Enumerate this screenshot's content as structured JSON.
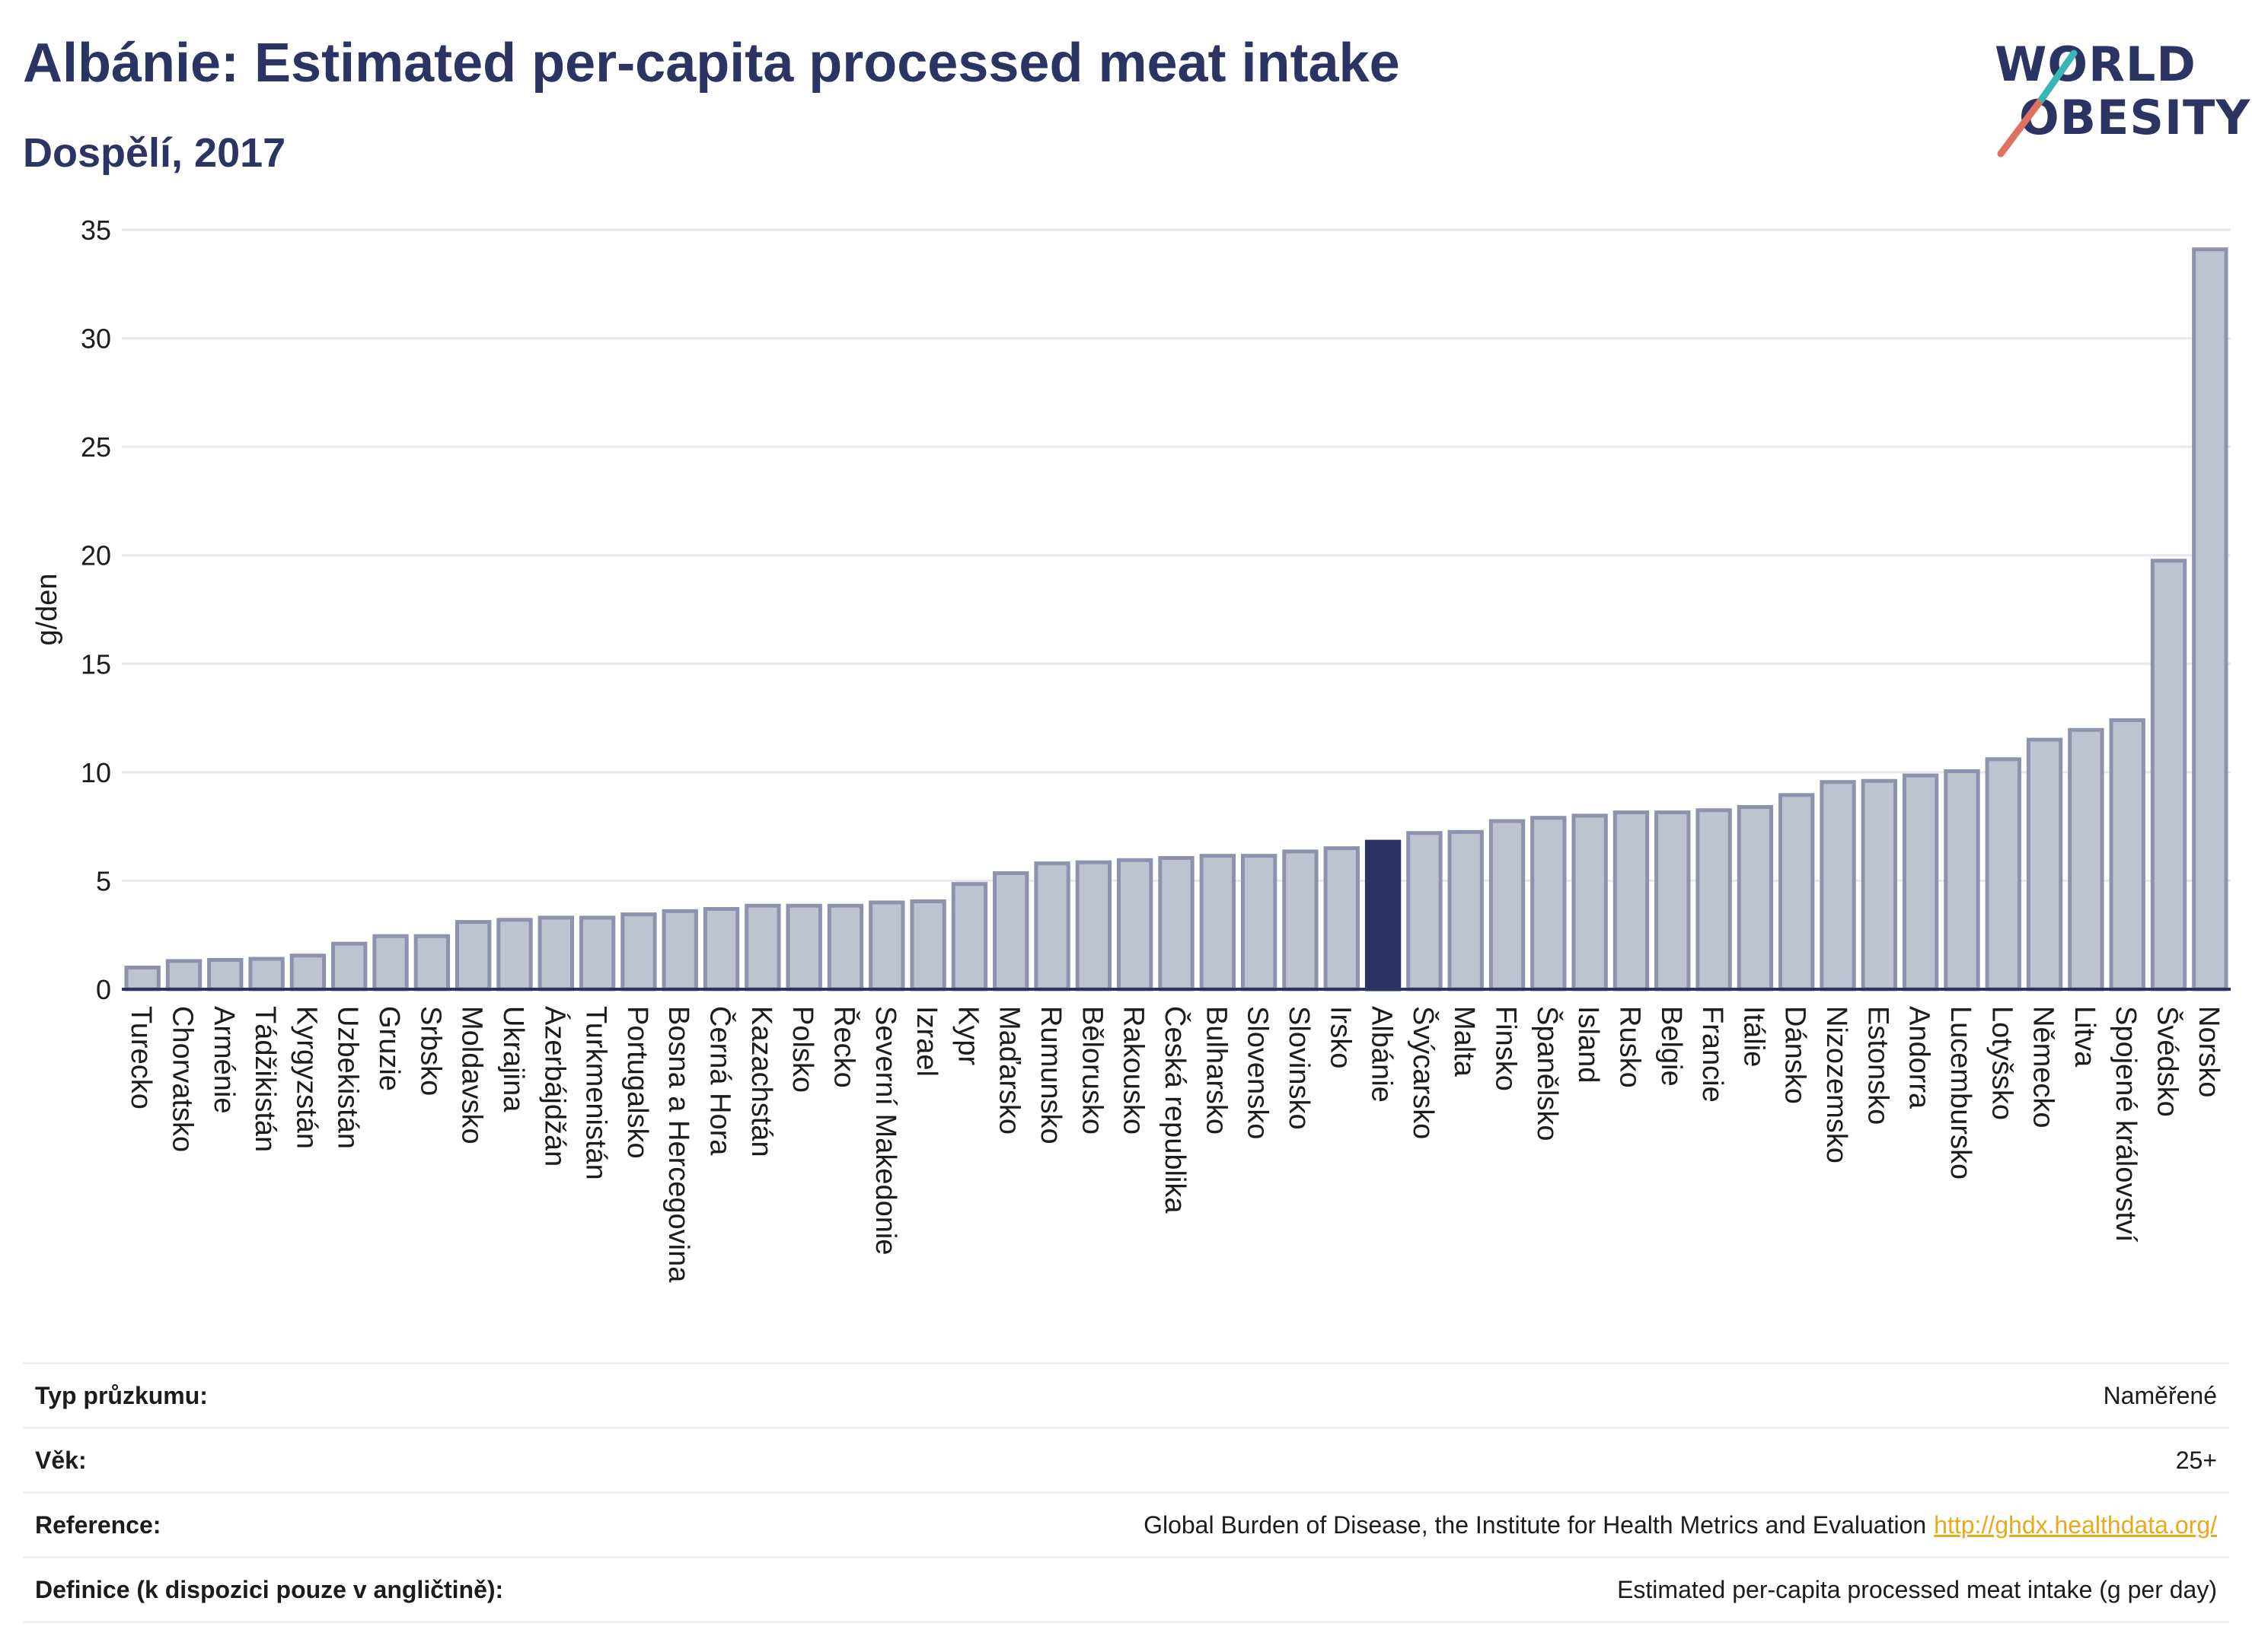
{
  "header": {
    "title": "Albánie: Estimated per-capita processed meat intake",
    "subtitle": "Dospělí, 2017"
  },
  "logo": {
    "line1": "WORLD",
    "line2": "OBESITY"
  },
  "colors": {
    "bar": "#bfc3d1",
    "bar_border": "#8d92ad",
    "highlight": "#2b3462",
    "grid": "#e6e8ec",
    "axis_text": "#1c1c1c",
    "accent_teal": "#3ab5b5",
    "accent_coral": "#e07060"
  },
  "chart_data": {
    "type": "bar",
    "ylabel": "g/den",
    "ylim": [
      0,
      35
    ],
    "yticks": [
      0,
      5,
      10,
      15,
      20,
      25,
      30,
      35
    ],
    "grid": true,
    "highlight": "Albánie",
    "categories": [
      "Turecko",
      "Chorvatsko",
      "Arménie",
      "Tádžikistán",
      "Kyrgyzstán",
      "Uzbekistán",
      "Gruzie",
      "Srbsko",
      "Moldavsko",
      "Ukrajina",
      "Ázerbájdžán",
      "Turkmenistán",
      "Portugalsko",
      "Bosna a Hercegovina",
      "Černá Hora",
      "Kazachstán",
      "Polsko",
      "Řecko",
      "Severní Makedonie",
      "Izrael",
      "Kypr",
      "Maďarsko",
      "Rumunsko",
      "Bělorusko",
      "Rakousko",
      "Česká republika",
      "Bulharsko",
      "Slovensko",
      "Slovinsko",
      "Irsko",
      "Albánie",
      "Švýcarsko",
      "Malta",
      "Finsko",
      "Španělsko",
      "Island",
      "Rusko",
      "Belgie",
      "Francie",
      "Itálie",
      "Dánsko",
      "Nizozemsko",
      "Estonsko",
      "Andorra",
      "Lucembursko",
      "Lotyšsko",
      "Německo",
      "Litva",
      "Spojené království",
      "Švédsko",
      "Norsko"
    ],
    "values": [
      1.0,
      1.3,
      1.35,
      1.4,
      1.55,
      2.1,
      2.45,
      2.45,
      3.1,
      3.2,
      3.3,
      3.3,
      3.45,
      3.6,
      3.7,
      3.85,
      3.85,
      3.85,
      4.0,
      4.05,
      4.85,
      5.35,
      5.8,
      5.85,
      5.95,
      6.05,
      6.15,
      6.15,
      6.35,
      6.5,
      6.8,
      7.2,
      7.25,
      7.75,
      7.9,
      8.0,
      8.15,
      8.15,
      8.25,
      8.4,
      8.95,
      9.55,
      9.6,
      9.85,
      10.05,
      10.6,
      11.5,
      11.95,
      12.4,
      19.75,
      34.1
    ]
  },
  "footer": {
    "survey_label": "Typ průzkumu:",
    "survey_value": "Naměřené",
    "age_label": "Věk:",
    "age_value": "25+",
    "reference_label": "Reference:",
    "reference_value": "Global Burden of Disease, the Institute for Health Metrics and Evaluation",
    "reference_link": "http://ghdx.healthdata.org/",
    "definition_label": "Definice (k dispozici pouze v angličtině):",
    "definition_value": "Estimated per-capita processed meat intake (g per day)"
  }
}
